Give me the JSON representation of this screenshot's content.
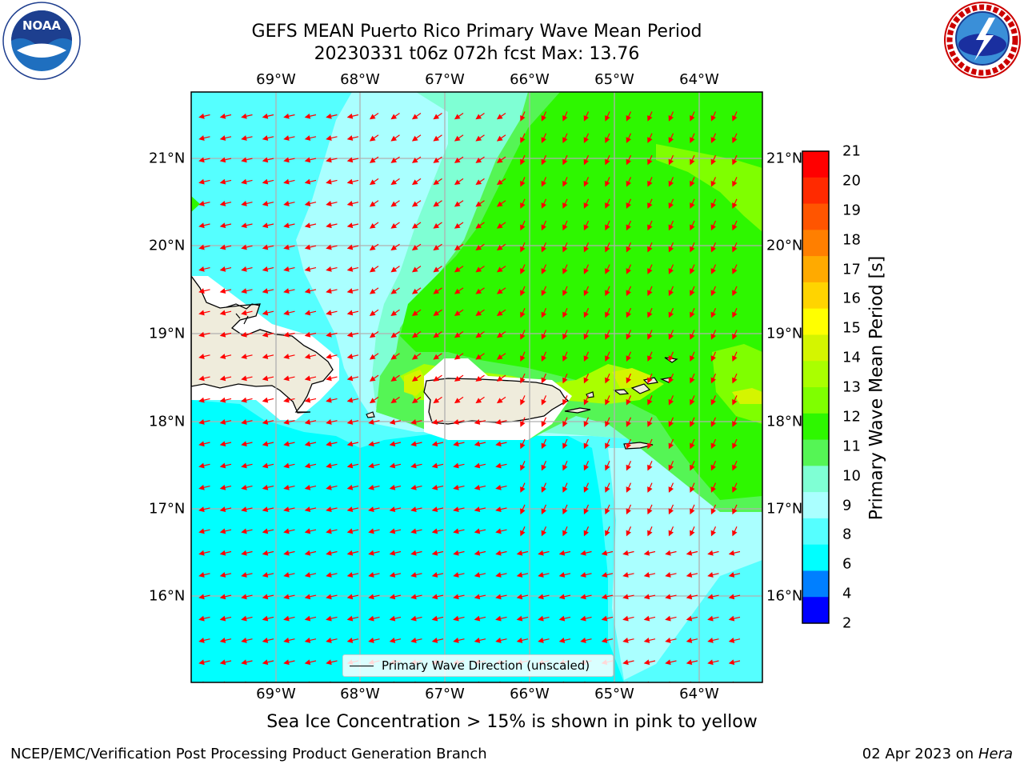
{
  "header": {
    "title_line1": "GEFS MEAN Puerto Rico Primary Wave Mean Period",
    "title_line2": "20230331 t06z 072h fcst   Max: 13.76"
  },
  "logos": {
    "noaa": {
      "text": "NOAA",
      "ring_text": "NATIONAL OCEANIC AND ATMOSPHERIC ADMINISTRATION · U.S. DEPARTMENT OF COMMERCE"
    },
    "nws": {
      "ring_text": "NATIONAL WEATHER SERVICE"
    }
  },
  "map": {
    "lon_labels": [
      "69°W",
      "68°W",
      "67°W",
      "66°W",
      "65°W",
      "64°W"
    ],
    "lat_labels": [
      "21°N",
      "20°N",
      "19°N",
      "18°N",
      "17°N",
      "16°N"
    ],
    "legend_label": "Primary Wave Direction (unscaled)",
    "land_color": "#efecdc",
    "arrow_color": "#ff0000"
  },
  "colorbar": {
    "label": "Primary Wave Mean Period [s]",
    "ticks": [
      "21",
      "20",
      "19",
      "18",
      "17",
      "16",
      "15",
      "14",
      "13",
      "12",
      "11",
      "10",
      "9",
      "8",
      "6",
      "4",
      "2"
    ],
    "colors": [
      "#ff0000",
      "#ff2a00",
      "#ff5500",
      "#ff7f00",
      "#ffaa00",
      "#ffd400",
      "#ffff00",
      "#d4f500",
      "#aaff00",
      "#7fff00",
      "#2ef700",
      "#55f555",
      "#7fffd4",
      "#aaffff",
      "#55ffff",
      "#00ffff",
      "#007fff",
      "#0000ff"
    ]
  },
  "note": "Sea Ice Concentration > 15% is shown in pink to yellow",
  "footer": {
    "left": "NCEP/EMC/Verification Post Processing Product Generation Branch",
    "date": "02 Apr 2023 on",
    "machine": "Hera"
  }
}
